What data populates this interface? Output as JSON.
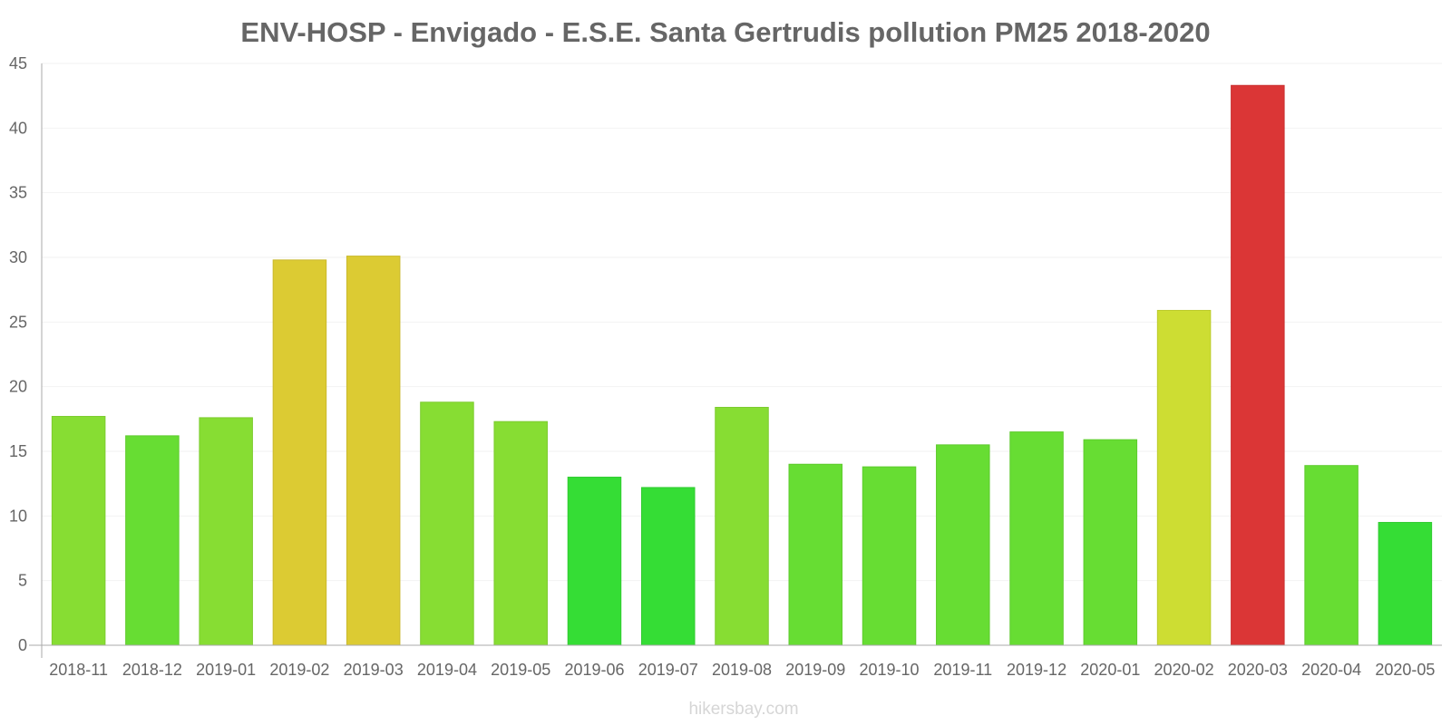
{
  "chart_data": {
    "type": "bar",
    "title": "ENV-HOSP - Envigado - E.S.E. Santa Gertrudis pollution PM25 2018-2020",
    "xlabel": "",
    "ylabel": "",
    "ylim": [
      0,
      45
    ],
    "yticks": [
      0,
      5,
      10,
      15,
      20,
      25,
      30,
      35,
      40,
      45
    ],
    "grid": true,
    "categories": [
      "2018-11",
      "2018-12",
      "2019-01",
      "2019-02",
      "2019-03",
      "2019-04",
      "2019-05",
      "2019-06",
      "2019-07",
      "2019-08",
      "2019-09",
      "2019-10",
      "2019-11",
      "2019-12",
      "2020-01",
      "2020-02",
      "2020-03",
      "2020-04",
      "2020-05"
    ],
    "values": [
      17.7,
      16.2,
      17.6,
      29.8,
      30.1,
      18.8,
      17.3,
      13.0,
      12.2,
      18.4,
      14.0,
      13.8,
      15.5,
      16.5,
      15.9,
      25.9,
      43.3,
      13.9,
      9.5
    ],
    "colors": [
      "#87dd33",
      "#67dd33",
      "#87dd33",
      "#dccb33",
      "#dccb33",
      "#87dd33",
      "#87dd33",
      "#35dd35",
      "#35dd35",
      "#87dd33",
      "#67dd33",
      "#67dd33",
      "#67dd33",
      "#67dd33",
      "#67dd33",
      "#cddd33",
      "#db3636",
      "#67dd33",
      "#35dd35"
    ],
    "border_colors": [
      "#7ccb2e",
      "#5ecb2e",
      "#7ccb2e",
      "#cab92e",
      "#cab92e",
      "#7ccb2e",
      "#7ccb2e",
      "#30cb30",
      "#30cb30",
      "#7ccb2e",
      "#5ecb2e",
      "#5ecb2e",
      "#5ecb2e",
      "#5ecb2e",
      "#5ecb2e",
      "#bccb2e",
      "#c93030",
      "#5ecb2e",
      "#30cb30"
    ]
  },
  "watermark": "hikersbay.com",
  "colors": {
    "text": "#666666",
    "axis": "#aaaaaa",
    "grid": "#f2f2f2",
    "watermark": "#d6d6d6"
  }
}
